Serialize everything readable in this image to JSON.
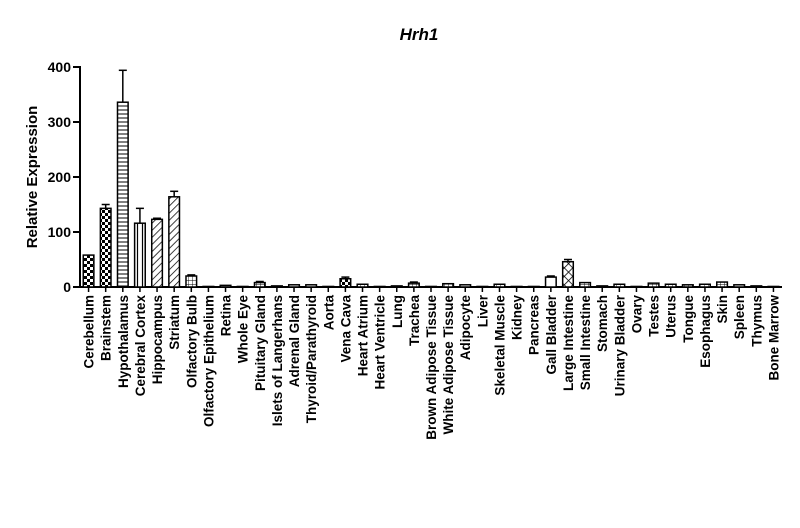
{
  "chart_data": {
    "type": "bar",
    "title": "Hrh1",
    "xlabel": "",
    "ylabel": "Relative Expression",
    "ylim": [
      0,
      400
    ],
    "yticks": [
      0,
      100,
      200,
      300,
      400
    ],
    "grid": false,
    "categories": [
      "Cerebellum",
      "Brainstem",
      "Hypothalamus",
      "Cerebral Cortex",
      "Hippocampus",
      "Striatum",
      "Olfactory Bulb",
      "Olfactory Epithelium",
      "Retina",
      "Whole Eye",
      "Pituitary Gland",
      "Islets of Langerhans",
      "Adrenal Gland",
      "Thyroid/Parathyroid",
      "Aorta",
      "Vena Cava",
      "Heart Atrium",
      "Heart Ventricle",
      "Lung",
      "Trachea",
      "Brown Adipose Tissue",
      "White Adipose Tissue",
      "Adipocyte",
      "Liver",
      "Skeletal Muscle",
      "Kidney",
      "Pancreas",
      "Gall Bladder",
      "Large Intestine",
      "Small Intestine",
      "Stomach",
      "Urinary Bladder",
      "Ovary",
      "Testes",
      "Uterus",
      "Tongue",
      "Esophagus",
      "Skin",
      "Spleen",
      "Thymus",
      "Bone Marrow"
    ],
    "values": [
      58,
      143,
      336,
      116,
      123,
      164,
      20,
      1,
      3,
      1,
      8,
      2,
      4,
      4,
      1,
      15,
      5,
      1,
      2,
      7,
      1,
      6,
      4,
      1,
      5,
      1,
      1,
      18,
      46,
      8,
      2,
      5,
      1,
      7,
      5,
      4,
      5,
      9,
      4,
      2,
      1
    ],
    "errors": [
      0,
      7,
      58,
      27,
      2,
      10,
      2,
      0,
      0,
      0,
      2,
      0,
      0,
      0,
      0,
      3,
      0,
      0,
      0,
      2,
      0,
      0,
      0,
      0,
      0,
      0,
      0,
      2,
      4,
      0,
      0,
      0,
      0,
      0,
      0,
      0,
      0,
      0,
      0,
      0,
      0
    ],
    "patterns": [
      "checker",
      "checker",
      "hlines",
      "vlines",
      "dlines",
      "dlines",
      "grid",
      "plain",
      "plain",
      "plain",
      "grid",
      "plain",
      "plain",
      "plain",
      "plain",
      "checker",
      "grid",
      "plain",
      "plain",
      "grid",
      "plain",
      "grid",
      "plain",
      "plain",
      "grid",
      "plain",
      "plain",
      "plain",
      "xhatch",
      "grid",
      "plain",
      "grid",
      "plain",
      "grid",
      "grid",
      "grid",
      "grid",
      "grid",
      "plain",
      "plain",
      "plain"
    ]
  }
}
